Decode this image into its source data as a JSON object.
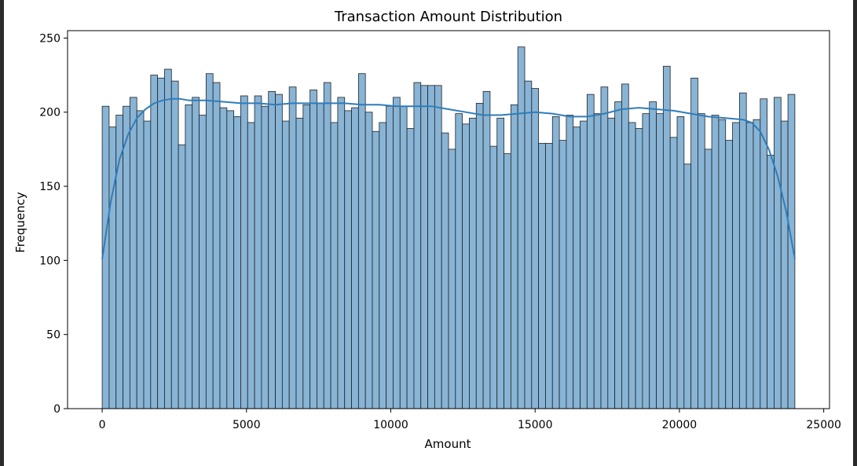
{
  "chart_data": {
    "type": "bar",
    "title": "Transaction Amount Distribution",
    "xlabel": "Amount",
    "ylabel": "Frequency",
    "xlim": [
      -1200,
      25200
    ],
    "ylim": [
      0,
      255
    ],
    "xticks": [
      0,
      5000,
      10000,
      15000,
      20000,
      25000
    ],
    "yticks": [
      0,
      50,
      100,
      150,
      200,
      250
    ],
    "bin_start": 0,
    "bin_width": 240,
    "bins": 100,
    "values": [
      204,
      190,
      198,
      204,
      210,
      201,
      194,
      225,
      223,
      229,
      221,
      178,
      205,
      210,
      198,
      226,
      220,
      203,
      201,
      197,
      211,
      193,
      211,
      204,
      214,
      212,
      194,
      217,
      196,
      205,
      215,
      206,
      220,
      193,
      210,
      201,
      203,
      226,
      200,
      187,
      193,
      204,
      210,
      204,
      189,
      220,
      218,
      218,
      218,
      186,
      175,
      199,
      192,
      196,
      206,
      214,
      177,
      196,
      172,
      205,
      244,
      221,
      216,
      179,
      179,
      197,
      181,
      198,
      190,
      194,
      212,
      199,
      217,
      196,
      207,
      219,
      193,
      189,
      199,
      207,
      199,
      231,
      183,
      197,
      165,
      223,
      199,
      175,
      198,
      195,
      181,
      193,
      213,
      193,
      195,
      209,
      171,
      210,
      194,
      212
    ],
    "kde": {
      "x": [
        0,
        300,
        600,
        900,
        1200,
        1500,
        1800,
        2100,
        2400,
        2700,
        3000,
        3600,
        4200,
        4800,
        5400,
        6000,
        6600,
        7200,
        7800,
        8400,
        9000,
        9600,
        10200,
        10800,
        11400,
        12000,
        12600,
        13200,
        13800,
        14400,
        15000,
        15600,
        16200,
        16800,
        17400,
        18000,
        18600,
        19200,
        19800,
        20400,
        21000,
        21600,
        22200,
        22500,
        22800,
        23100,
        23400,
        23700,
        24000
      ],
      "y": [
        101,
        140,
        168,
        185,
        196,
        202,
        206,
        208,
        209,
        209,
        208,
        208,
        207,
        206,
        206,
        205,
        206,
        206,
        206,
        206,
        205,
        205,
        204,
        204,
        204,
        202,
        200,
        198,
        198,
        199,
        200,
        199,
        197,
        197,
        199,
        202,
        203,
        202,
        201,
        199,
        197,
        196,
        195,
        193,
        187,
        175,
        157,
        133,
        101
      ]
    },
    "bar_color": "#88b4d6",
    "bar_edge": "#222222",
    "line_color": "#2f7dba",
    "grid": false
  }
}
